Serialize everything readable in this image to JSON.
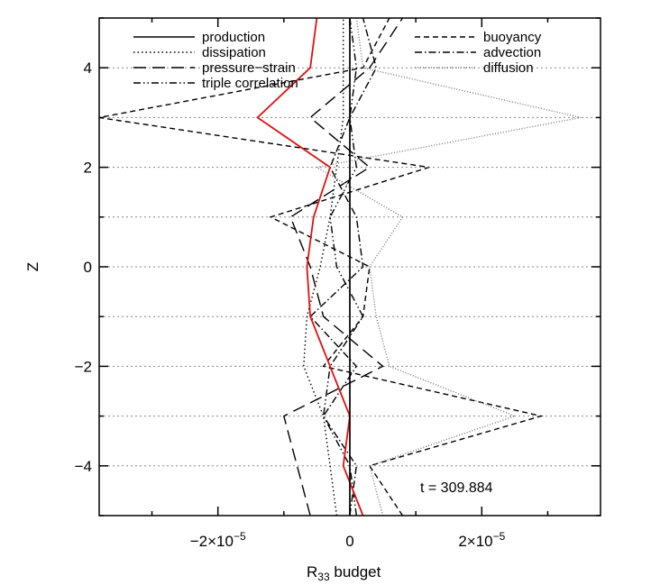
{
  "chart_data": {
    "type": "line",
    "xlabel_main": "R",
    "xlabel_sub": "33",
    "xlabel_rest": " budget",
    "ylabel": "Z",
    "xlim": [
      -3.8e-05,
      3.8e-05
    ],
    "ylim": [
      -5,
      5
    ],
    "xticks": [
      {
        "value": -2e-05,
        "base": "−2×10",
        "exp": "−5"
      },
      {
        "value": 0,
        "base": "0",
        "exp": ""
      },
      {
        "value": 2e-05,
        "base": "2×10",
        "exp": "−5"
      }
    ],
    "yticks": [
      -4,
      -2,
      0,
      2,
      4
    ],
    "annotation": "t  =  309.884",
    "grid": "dotted horizontal lines at integer Z",
    "legend": [
      {
        "label": "production",
        "style": "solid"
      },
      {
        "label": "dissipation",
        "style": "dotted"
      },
      {
        "label": "pressure−strain",
        "style": "long-dash"
      },
      {
        "label": "triple correlation",
        "style": "dash-dot-dot"
      },
      {
        "label": "buoyancy",
        "style": "dashed"
      },
      {
        "label": "advection",
        "style": "dash-dot"
      },
      {
        "label": "diffusion",
        "style": "fine-dotted"
      }
    ],
    "series": [
      {
        "name": "production",
        "color": "#000000",
        "x": [
          0.0,
          0.0,
          0.0,
          0.0,
          0.0,
          0.0,
          0.0,
          0.0,
          0.0,
          0.0,
          0.0
        ],
        "y": [
          -5,
          -4,
          -3,
          -2,
          -1,
          0,
          1,
          2,
          3,
          4,
          5
        ]
      },
      {
        "name": "dissipation",
        "color": "#000000",
        "x": [
          -2e-06,
          -3e-06,
          -4e-06,
          -7e-06,
          -6.5e-06,
          -4.5e-06,
          -3e-06,
          -2e-06,
          -1e-06,
          -1e-06,
          -1e-06
        ],
        "y": [
          -5,
          -4,
          -3,
          -2,
          -1,
          0,
          1,
          2,
          3,
          4,
          5
        ]
      },
      {
        "name": "pressure−strain",
        "color": "#000000",
        "x": [
          -6e-06,
          -8e-06,
          -1e-05,
          5e-06,
          -4e-06,
          -6e-06,
          -9e-06,
          3e-06,
          -6e-06,
          3e-06,
          8e-06
        ],
        "y": [
          -5,
          -4,
          -3,
          -2,
          -1,
          0,
          1,
          2,
          3,
          4,
          5
        ]
      },
      {
        "name": "triple correlation",
        "color": "#000000",
        "x": [
          1e-06,
          0.0,
          -4e-06,
          -3e-06,
          2e-06,
          -2e-06,
          -3e-06,
          1e-06,
          0.0,
          1e-06,
          0.0
        ],
        "y": [
          -5,
          -4,
          -3,
          -2,
          -1,
          0,
          1,
          2,
          3,
          4,
          5
        ]
      },
      {
        "name": "buoyancy",
        "color": "#000000",
        "x": [
          8e-06,
          3e-06,
          2.9e-05,
          -4e-06,
          2e-06,
          3e-06,
          -1.2e-05,
          1.2e-05,
          -3.8e-05,
          2e-06,
          6e-06
        ],
        "y": [
          -5,
          -4,
          -3,
          -2,
          -1,
          0,
          1,
          2,
          3,
          4,
          5
        ]
      },
      {
        "name": "advection",
        "color": "#000000",
        "x": [
          0.0,
          1e-06,
          -4e-06,
          1e-06,
          -6e-06,
          2e-06,
          1e-06,
          -3e-06,
          0.0,
          4e-06,
          2e-06
        ],
        "y": [
          -5,
          -4,
          -3,
          -2,
          -1,
          0,
          1,
          2,
          3,
          4,
          5
        ]
      },
      {
        "name": "diffusion",
        "color": "#777777",
        "x": [
          5e-06,
          3e-06,
          2.5e-05,
          6e-06,
          4e-06,
          3e-06,
          8e-06,
          -5e-06,
          3.5e-05,
          2e-06,
          1e-06
        ],
        "y": [
          -5,
          -4,
          -3,
          -2,
          -1,
          0,
          1,
          2,
          3,
          4,
          5
        ]
      },
      {
        "name": "red curve",
        "color": "#e01010",
        "x": [
          2e-06,
          -1e-06,
          0.0,
          -3e-06,
          -6e-06,
          -6.5e-06,
          -5.5e-06,
          -3e-06,
          -1.4e-05,
          -6e-06,
          -5e-06
        ],
        "y": [
          -5,
          -4,
          -3,
          -2,
          -1,
          0,
          1,
          2,
          3,
          4,
          5
        ]
      }
    ]
  }
}
